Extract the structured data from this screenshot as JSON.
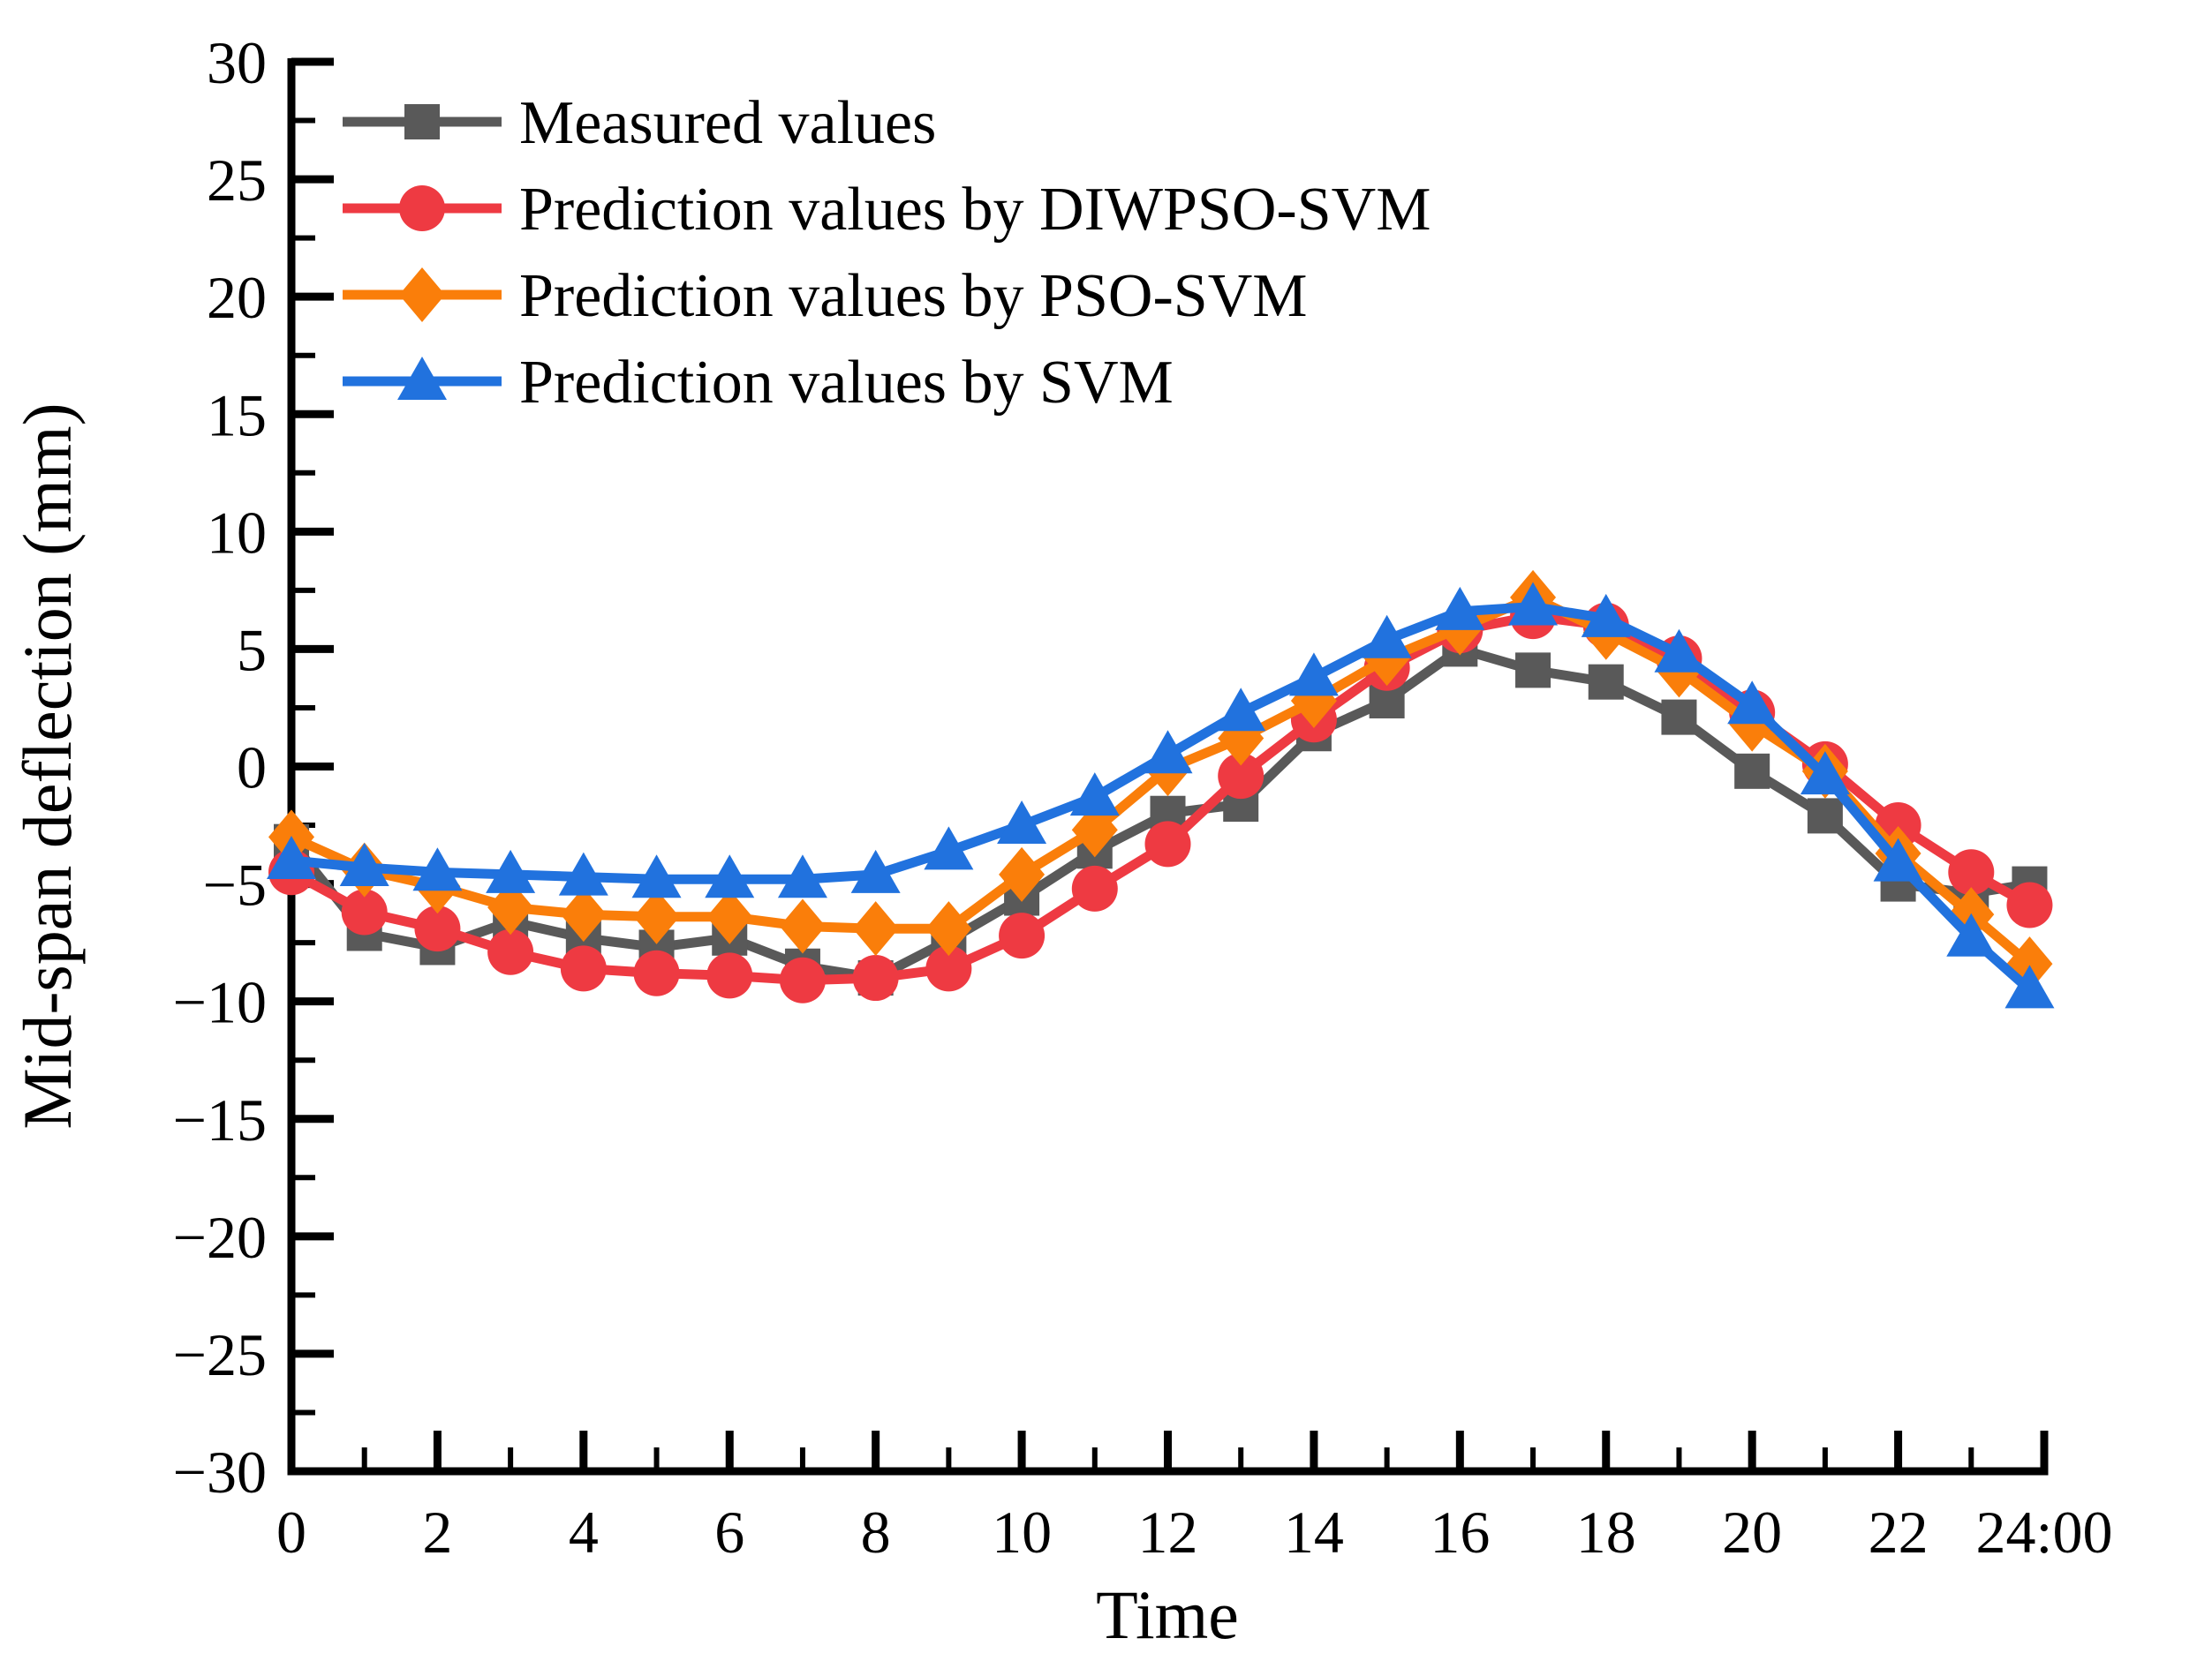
{
  "chart_data": {
    "type": "line",
    "title": "",
    "xlabel": "Time",
    "ylabel": "Mid-span deflection (mm)",
    "xlim": [
      0,
      24
    ],
    "ylim": [
      -30,
      30
    ],
    "grid": false,
    "legend_position": "top-left-inside",
    "x_ticks": {
      "values": [
        0,
        2,
        4,
        6,
        8,
        10,
        12,
        14,
        16,
        18,
        20,
        22,
        24
      ],
      "labels": [
        "0",
        "2",
        "4",
        "6",
        "8",
        "10",
        "12",
        "14",
        "16",
        "18",
        "20",
        "22",
        "24:00"
      ],
      "minor_values": [
        1,
        3,
        5,
        7,
        9,
        11,
        13,
        15,
        17,
        19,
        21,
        23
      ]
    },
    "y_ticks": {
      "values": [
        30,
        25,
        20,
        15,
        10,
        5,
        0,
        -5,
        -10,
        -15,
        -20,
        -25,
        -30
      ],
      "labels": [
        "30",
        "25",
        "20",
        "15",
        "10",
        "5",
        "0",
        "−5",
        "−10",
        "−15",
        "−20",
        "−25",
        "−30"
      ],
      "minor_values": [
        27.5,
        22.5,
        17.5,
        12.5,
        7.5,
        2.5,
        -2.5,
        -7.5,
        -12.5,
        -17.5,
        -22.5,
        -27.5
      ]
    },
    "x": [
      0,
      1,
      2,
      3,
      4,
      5,
      6,
      7,
      8,
      9,
      10,
      11,
      12,
      13,
      14,
      15,
      16,
      17,
      18,
      19,
      20,
      21,
      22,
      23,
      23.8
    ],
    "series": [
      {
        "id": "measured",
        "name": "Measured values",
        "color": "#595959",
        "marker": "square",
        "values": [
          -3.2,
          -7.1,
          -7.7,
          -6.6,
          -7.3,
          -7.7,
          -7.3,
          -8.5,
          -9.0,
          -7.4,
          -5.6,
          -3.6,
          -2.0,
          -1.6,
          1.4,
          2.8,
          5.0,
          4.1,
          3.6,
          2.1,
          -0.2,
          -2.1,
          -5.0,
          -5.4,
          -5.0
        ]
      },
      {
        "id": "diwpso-svm",
        "name": "Prediction values by DIWPSO-SVM",
        "color": "#EE3A42",
        "marker": "circle",
        "values": [
          -4.5,
          -6.2,
          -6.9,
          -7.9,
          -8.6,
          -8.8,
          -8.9,
          -9.1,
          -9.0,
          -8.6,
          -7.2,
          -5.2,
          -3.3,
          -0.4,
          2.0,
          4.2,
          5.8,
          6.4,
          6.0,
          4.6,
          2.3,
          0.1,
          -2.5,
          -4.5,
          -5.9
        ]
      },
      {
        "id": "pso-svm",
        "name": "Prediction values by PSO-SVM",
        "color": "#FA7E0A",
        "marker": "diamond",
        "values": [
          -3.0,
          -4.4,
          -5.1,
          -6.0,
          -6.3,
          -6.4,
          -6.4,
          -6.8,
          -6.9,
          -6.9,
          -4.6,
          -2.7,
          -0.1,
          1.2,
          2.8,
          4.6,
          5.9,
          7.2,
          5.7,
          4.1,
          1.8,
          -0.2,
          -3.7,
          -6.3,
          -8.4
        ]
      },
      {
        "id": "svm",
        "name": "Prediction values by SVM",
        "color": "#2172DE",
        "marker": "triangle",
        "values": [
          -4.0,
          -4.3,
          -4.5,
          -4.6,
          -4.7,
          -4.8,
          -4.8,
          -4.8,
          -4.6,
          -3.6,
          -2.5,
          -1.3,
          0.5,
          2.3,
          3.8,
          5.4,
          6.6,
          6.8,
          6.3,
          4.8,
          2.6,
          -0.4,
          -4.1,
          -7.3,
          -9.5
        ]
      }
    ]
  }
}
